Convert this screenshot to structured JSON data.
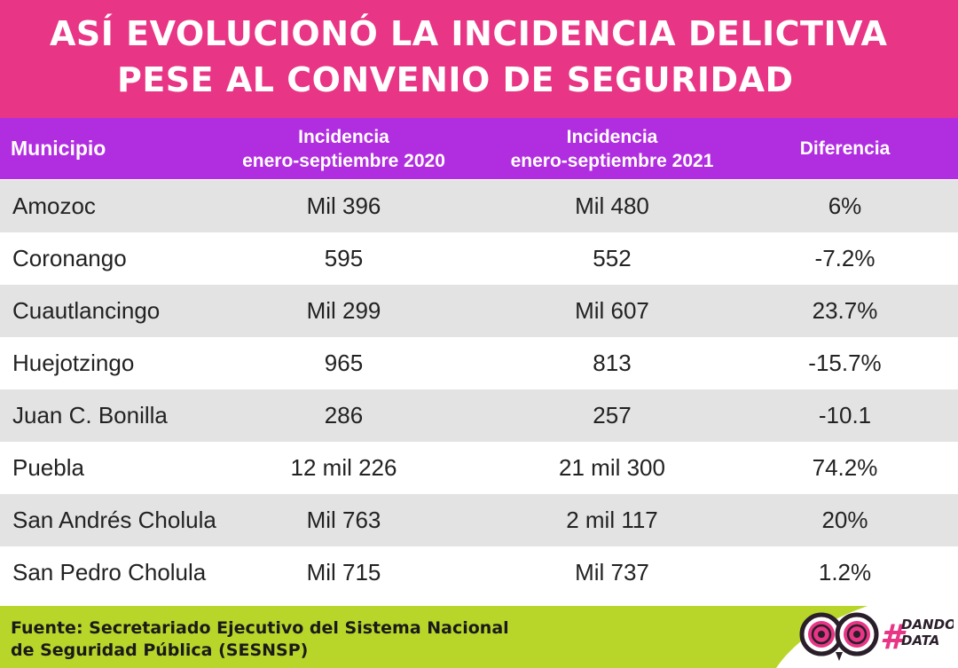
{
  "title": {
    "line1": "ASÍ EVOLUCIONÓ LA INCIDENCIA DELICTIVA",
    "line2": "PESE AL CONVENIO DE SEGURIDAD"
  },
  "table": {
    "headers": {
      "municipio": "Municipio",
      "inc2020_l1": "Incidencia",
      "inc2020_l2": "enero-septiembre 2020",
      "inc2021_l1": "Incidencia",
      "inc2021_l2": "enero-septiembre 2021",
      "diferencia": "Diferencia"
    },
    "rows": [
      {
        "municipio": "Amozoc",
        "inc2020": "Mil 396",
        "inc2021": "Mil 480",
        "diferencia": "6%"
      },
      {
        "municipio": "Coronango",
        "inc2020": "595",
        "inc2021": "552",
        "diferencia": "-7.2%"
      },
      {
        "municipio": "Cuautlancingo",
        "inc2020": "Mil 299",
        "inc2021": "Mil 607",
        "diferencia": "23.7%"
      },
      {
        "municipio": "Huejotzingo",
        "inc2020": "965",
        "inc2021": "813",
        "diferencia": "-15.7%"
      },
      {
        "municipio": "Juan C. Bonilla",
        "inc2020": "286",
        "inc2021": "257",
        "diferencia": "-10.1"
      },
      {
        "municipio": "Puebla",
        "inc2020": "12 mil 226",
        "inc2021": "21 mil 300",
        "diferencia": "74.2%"
      },
      {
        "municipio": "San Andrés Cholula",
        "inc2020": "Mil 763",
        "inc2021": "2 mil 117",
        "diferencia": "20%"
      },
      {
        "municipio": "San Pedro Cholula",
        "inc2020": "Mil 715",
        "inc2021": "Mil 737",
        "diferencia": "1.2%"
      }
    ]
  },
  "footer": {
    "source_l1": "Fuente: Secretariado Ejecutivo del Sistema Nacional",
    "source_l2": "de Seguridad Pública (SESNSP)",
    "logo_hash": "#",
    "logo_word1": "DANDO",
    "logo_word2": "DATA"
  },
  "colors": {
    "title_band": "#e83585",
    "header_row": "#b12ee0",
    "row_alt": "#e3e3e3",
    "footer": "#b8d62a"
  }
}
